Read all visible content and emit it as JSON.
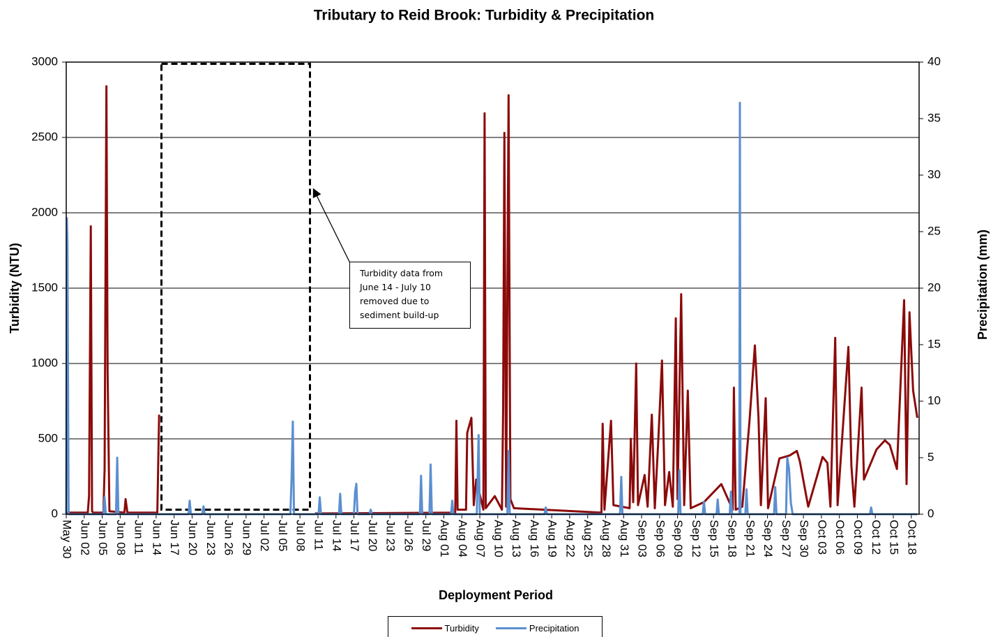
{
  "chart_data": {
    "type": "line",
    "title": "Tributary to Reid Brook: Turbidity & Precipitation",
    "xlabel": "Deployment Period",
    "ylabel": "Turbidity (NTU)",
    "y2label": "Precipitation (mm)",
    "annotation": "Turbidity data from June 14 - July 10 removed due to sediment build-up",
    "grid": true,
    "legend": "bottom",
    "xlim": [
      0,
      142.3
    ],
    "ylim": [
      0,
      3000
    ],
    "y2lim": [
      0,
      40
    ],
    "yticks": [
      0,
      500,
      1000,
      1500,
      2000,
      2500,
      3000
    ],
    "y2ticks": [
      0,
      5,
      10,
      15,
      20,
      25,
      30,
      35,
      40
    ],
    "xticks": [
      {
        "value": 0,
        "label": "May 30"
      },
      {
        "value": 3,
        "label": "Jun 02"
      },
      {
        "value": 6,
        "label": "Jun 05"
      },
      {
        "value": 9,
        "label": "Jun 08"
      },
      {
        "value": 12,
        "label": "Jun 11"
      },
      {
        "value": 15,
        "label": "Jun 14"
      },
      {
        "value": 18,
        "label": "Jun 17"
      },
      {
        "value": 21,
        "label": "Jun 20"
      },
      {
        "value": 24,
        "label": "Jun 23"
      },
      {
        "value": 27,
        "label": "Jun 26"
      },
      {
        "value": 30,
        "label": "Jun 29"
      },
      {
        "value": 33,
        "label": "Jul 02"
      },
      {
        "value": 36,
        "label": "Jul 05"
      },
      {
        "value": 39,
        "label": "Jul 08"
      },
      {
        "value": 42,
        "label": "Jul 11"
      },
      {
        "value": 45,
        "label": "Jul 14"
      },
      {
        "value": 48,
        "label": "Jul 17"
      },
      {
        "value": 51,
        "label": "Jul 20"
      },
      {
        "value": 54,
        "label": "Jul 23"
      },
      {
        "value": 57,
        "label": "Jul 26"
      },
      {
        "value": 60,
        "label": "Jul 29"
      },
      {
        "value": 63,
        "label": "Aug 01"
      },
      {
        "value": 66,
        "label": "Aug 04"
      },
      {
        "value": 69,
        "label": "Aug 07"
      },
      {
        "value": 72,
        "label": "Aug 10"
      },
      {
        "value": 75,
        "label": "Aug 13"
      },
      {
        "value": 78,
        "label": "Aug 16"
      },
      {
        "value": 81,
        "label": "Aug 19"
      },
      {
        "value": 84,
        "label": "Aug 22"
      },
      {
        "value": 87,
        "label": "Aug 25"
      },
      {
        "value": 90,
        "label": "Aug 28"
      },
      {
        "value": 93,
        "label": "Aug 31"
      },
      {
        "value": 96,
        "label": "Sep 03"
      },
      {
        "value": 99,
        "label": "Sep 06"
      },
      {
        "value": 102,
        "label": "Sep 09"
      },
      {
        "value": 105,
        "label": "Sep 12"
      },
      {
        "value": 108,
        "label": "Sep 15"
      },
      {
        "value": 111,
        "label": "Sep 18"
      },
      {
        "value": 114,
        "label": "Sep 21"
      },
      {
        "value": 117,
        "label": "Sep 24"
      },
      {
        "value": 120,
        "label": "Sep 27"
      },
      {
        "value": 123,
        "label": "Sep 30"
      },
      {
        "value": 126,
        "label": "Oct 03"
      },
      {
        "value": 129,
        "label": "Oct 06"
      },
      {
        "value": 132,
        "label": "Oct 09"
      },
      {
        "value": 135,
        "label": "Oct 12"
      },
      {
        "value": 138,
        "label": "Oct 15"
      },
      {
        "value": 141,
        "label": "Oct 18"
      }
    ],
    "series": [
      {
        "name": "Turbidity",
        "color": "#8b0a0a",
        "axis": "y",
        "x": [
          0,
          3.6,
          3.8,
          4.1,
          4.3,
          4.5,
          6.2,
          6.4,
          6.7,
          6.9,
          7.2,
          9.7,
          9.9,
          10.2,
          15.2,
          15.5,
          15.7,
          41.5,
          64.9,
          65.1,
          65.3,
          66.7,
          66.9,
          67.6,
          68.0,
          68.4,
          69.6,
          69.8,
          70.0,
          71.5,
          72.7,
          72.9,
          73.1,
          73.4,
          73.8,
          74.1,
          74.7,
          89.3,
          89.5,
          89.8,
          90.9,
          91.3,
          94.0,
          94.2,
          94.6,
          95.1,
          95.4,
          96.5,
          97.0,
          97.7,
          98.2,
          98.8,
          99.4,
          99.9,
          100.6,
          101.2,
          101.7,
          102.0,
          102.6,
          103.1,
          103.7,
          104.2,
          106.4,
          109.3,
          111.2,
          111.4,
          111.7,
          112.8,
          114.0,
          114.9,
          115.5,
          115.9,
          116.7,
          117.1,
          119.0,
          120.7,
          121.9,
          122.4,
          123.8,
          126.2,
          127.0,
          127.5,
          128.3,
          128.7,
          130.5,
          131.0,
          131.5,
          132.7,
          133.1,
          135.2,
          136.6,
          137.4,
          138.6,
          139.8,
          140.2,
          140.7,
          141.3,
          142
        ],
        "values": [
          10,
          10,
          120,
          1910,
          20,
          10,
          10,
          300,
          2840,
          950,
          20,
          10,
          100,
          10,
          10,
          660,
          null,
          5,
          10,
          620,
          30,
          30,
          540,
          640,
          60,
          230,
          30,
          2660,
          40,
          120,
          30,
          700,
          2530,
          50,
          2780,
          100,
          40,
          10,
          600,
          30,
          620,
          60,
          40,
          500,
          80,
          1000,
          60,
          260,
          50,
          660,
          40,
          500,
          1020,
          60,
          280,
          50,
          1300,
          100,
          1460,
          60,
          820,
          40,
          80,
          200,
          30,
          840,
          30,
          50,
          620,
          1120,
          640,
          60,
          770,
          40,
          370,
          390,
          420,
          350,
          50,
          380,
          340,
          50,
          1170,
          60,
          1110,
          320,
          50,
          840,
          230,
          430,
          490,
          460,
          300,
          1420,
          200,
          1340,
          820,
          640
        ]
      },
      {
        "name": "Precipitation",
        "color": "#5b8fd0",
        "axis": "y2",
        "x": [
          0,
          0.1,
          0.2,
          0.4,
          6.2,
          6.4,
          6.6,
          8.3,
          8.5,
          8.7,
          20.4,
          20.6,
          20.8,
          22.7,
          22.9,
          23.1,
          37.4,
          37.6,
          37.8,
          38.0,
          42.1,
          42.3,
          42.5,
          45.5,
          45.7,
          45.9,
          48.0,
          48.2,
          48.4,
          48.6,
          50.6,
          50.8,
          51.0,
          59.0,
          59.2,
          59.4,
          60.6,
          60.8,
          61.0,
          64.2,
          64.4,
          64.6,
          68.5,
          68.8,
          69.0,
          73.6,
          73.8,
          74.0,
          79.8,
          80,
          80.2,
          92.4,
          92.6,
          92.8,
          102.1,
          102.3,
          102.5,
          106.2,
          106.4,
          106.6,
          108.5,
          108.7,
          108.9,
          110.7,
          110.9,
          111.1,
          112.3,
          112.4,
          112.5,
          113.3,
          113.5,
          113.7,
          118.1,
          118.3,
          118.5,
          120.1,
          120.3,
          120.6,
          120.9,
          121.2,
          134.1,
          134.3,
          134.5,
          142
        ],
        "values": [
          0,
          26.2,
          24,
          0,
          0,
          1.5,
          0,
          0,
          5,
          0,
          0,
          1.2,
          0,
          0,
          0.7,
          0,
          0,
          3.4,
          8.2,
          0,
          0,
          1.5,
          0,
          0,
          1.8,
          0,
          0,
          2,
          2.7,
          0,
          0,
          0.4,
          0,
          0,
          3.4,
          0,
          0,
          4.4,
          0,
          0,
          1.2,
          0,
          0,
          7,
          0,
          0,
          5.6,
          0,
          0,
          0.6,
          0,
          0,
          3.3,
          0,
          0,
          3.9,
          0,
          0,
          1.1,
          0,
          0,
          1.3,
          0,
          0,
          2,
          0,
          0,
          36.4,
          0,
          0,
          2.2,
          0,
          0,
          2.4,
          0,
          0,
          5,
          4,
          1,
          0,
          0,
          0.6,
          0,
          0
        ]
      }
    ]
  }
}
